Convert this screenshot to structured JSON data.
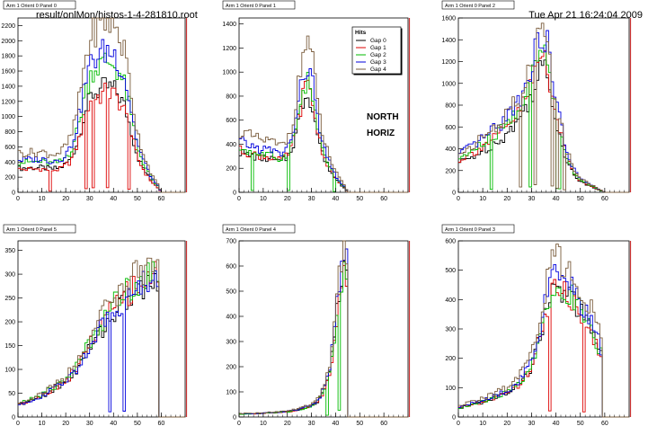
{
  "header": {
    "file_path": "result/onlMon/histos-1-4-281810.root",
    "timestamp": "Tue Apr 21 16:24:04 2009"
  },
  "legend": {
    "title": "Hits",
    "entries": [
      "Gap 0",
      "Gap 1",
      "Gap 2",
      "Gap 3",
      "Gap 4"
    ]
  },
  "annotations": [
    "NORTH",
    "HORIZ"
  ],
  "colors": {
    "Gap 0": "#000000",
    "Gap 1": "#dd0000",
    "Gap 2": "#00bb00",
    "Gap 3": "#0000dd",
    "Gap 4": "#7a5c3c",
    "panel_title_bg": "#ffffff",
    "frame": "#000000"
  },
  "chart_data": [
    {
      "type": "histogram-step",
      "title": "Arm 1 Orient 0 Panel 0",
      "xlim": [
        0,
        70
      ],
      "ylim": [
        0,
        2300
      ],
      "xticks": [
        0,
        10,
        20,
        30,
        40,
        50,
        60
      ],
      "yticks": [
        0,
        200,
        400,
        600,
        800,
        1000,
        1200,
        1400,
        1600,
        1800,
        2000,
        2200
      ],
      "bin_width": 1,
      "envelope": {
        "x": [
          0,
          10,
          14,
          18,
          22,
          25,
          28,
          31,
          34,
          37,
          40,
          42,
          45,
          47,
          50,
          53,
          56,
          59,
          60
        ],
        "y": [
          330,
          340,
          320,
          340,
          450,
          700,
          1100,
          1350,
          1400,
          1450,
          1420,
          1350,
          1150,
          900,
          500,
          300,
          150,
          50,
          0
        ]
      },
      "series": [
        {
          "name": "Gap 0",
          "scale": 0.95
        },
        {
          "name": "Gap 1",
          "scale": 0.9,
          "dips": [
            13,
            28,
            31,
            37,
            46
          ]
        },
        {
          "name": "Gap 2",
          "scale": 1.18
        },
        {
          "name": "Gap 3",
          "scale": 1.28
        },
        {
          "name": "Gap 4",
          "scale": 1.55
        }
      ]
    },
    {
      "type": "histogram-step",
      "title": "Arm 1 Orient 0 Panel 1",
      "xlim": [
        0,
        70
      ],
      "ylim": [
        0,
        1450
      ],
      "xticks": [
        0,
        10,
        20,
        30,
        40,
        50,
        60
      ],
      "yticks": [
        0,
        200,
        400,
        600,
        800,
        1000,
        1200,
        1400
      ],
      "bin_width": 1,
      "envelope": {
        "x": [
          0,
          3,
          8,
          13,
          17,
          20,
          23,
          26,
          28,
          30,
          32,
          35,
          38,
          41,
          44,
          45
        ],
        "y": [
          350,
          330,
          300,
          290,
          260,
          300,
          450,
          750,
          880,
          800,
          550,
          300,
          180,
          90,
          30,
          0
        ]
      },
      "series": [
        {
          "name": "Gap 0",
          "scale": 0.95
        },
        {
          "name": "Gap 1",
          "scale": 1.0
        },
        {
          "name": "Gap 2",
          "scale": 1.05,
          "dips": [
            5,
            20,
            39
          ]
        },
        {
          "name": "Gap 3",
          "scale": 1.2
        },
        {
          "name": "Gap 4",
          "scale": 1.45
        }
      ]
    },
    {
      "type": "histogram-step",
      "title": "Arm 1 Orient 0 Panel 2",
      "xlim": [
        0,
        70
      ],
      "ylim": [
        0,
        1600
      ],
      "xticks": [
        0,
        10,
        20,
        30,
        40,
        50,
        60
      ],
      "yticks": [
        0,
        200,
        400,
        600,
        800,
        1000,
        1200,
        1400,
        1600
      ],
      "bin_width": 1,
      "envelope": {
        "x": [
          0,
          5,
          10,
          15,
          20,
          25,
          28,
          31,
          34,
          36,
          38,
          41,
          44,
          47,
          50,
          53,
          57,
          60
        ],
        "y": [
          280,
          330,
          400,
          470,
          560,
          700,
          820,
          1000,
          1200,
          1150,
          900,
          600,
          330,
          180,
          100,
          70,
          30,
          0
        ]
      },
      "series": [
        {
          "name": "Gap 0",
          "scale": 0.95
        },
        {
          "name": "Gap 1",
          "scale": 1.05
        },
        {
          "name": "Gap 2",
          "scale": 1.1,
          "dips": [
            13,
            29,
            40,
            41
          ]
        },
        {
          "name": "Gap 3",
          "scale": 1.22
        },
        {
          "name": "Gap 4",
          "scale": 1.25,
          "dips": [
            25,
            31,
            38,
            40,
            43
          ]
        }
      ]
    },
    {
      "type": "histogram-step",
      "title": "Arm 1 Orient 0 Panel 5",
      "xlim": [
        0,
        70
      ],
      "ylim": [
        0,
        370
      ],
      "xticks": [
        0,
        10,
        20,
        30,
        40,
        50,
        60
      ],
      "yticks": [
        0,
        50,
        100,
        150,
        200,
        250,
        300,
        350
      ],
      "bin_width": 1,
      "end_bin": 59,
      "envelope": {
        "x": [
          0,
          5,
          10,
          15,
          20,
          25,
          30,
          35,
          40,
          45,
          50,
          55,
          59
        ],
        "y": [
          25,
          35,
          45,
          60,
          75,
          105,
          150,
          190,
          225,
          255,
          270,
          290,
          300
        ]
      },
      "series": [
        {
          "name": "Gap 0",
          "scale": 0.95
        },
        {
          "name": "Gap 1",
          "scale": 1.0
        },
        {
          "name": "Gap 2",
          "scale": 1.04
        },
        {
          "name": "Gap 3",
          "scale": 0.98,
          "dips": [
            38,
            44
          ]
        },
        {
          "name": "Gap 4",
          "scale": 1.1
        }
      ]
    },
    {
      "type": "histogram-step",
      "title": "Arm 1 Orient 0 Panel 4",
      "xlim": [
        0,
        70
      ],
      "ylim": [
        0,
        700
      ],
      "xticks": [
        0,
        10,
        20,
        30,
        40,
        50,
        60
      ],
      "yticks": [
        0,
        100,
        200,
        300,
        400,
        500,
        600,
        700
      ],
      "bin_width": 1,
      "end_bin": 45,
      "envelope": {
        "x": [
          0,
          10,
          20,
          25,
          30,
          33,
          36,
          38,
          40,
          42,
          44,
          45
        ],
        "y": [
          12,
          15,
          22,
          30,
          45,
          70,
          130,
          220,
          380,
          560,
          600,
          600
        ]
      },
      "series": [
        {
          "name": "Gap 0",
          "scale": 0.95
        },
        {
          "name": "Gap 1",
          "scale": 0.92
        },
        {
          "name": "Gap 2",
          "scale": 0.95,
          "dips": [
            36,
            41
          ]
        },
        {
          "name": "Gap 3",
          "scale": 1.02
        },
        {
          "name": "Gap 4",
          "scale": 1.1
        }
      ]
    },
    {
      "type": "histogram-step",
      "title": "Arm 1 Orient 0 Panel 3",
      "xlim": [
        0,
        70
      ],
      "ylim": [
        0,
        600
      ],
      "xticks": [
        0,
        10,
        20,
        30,
        40,
        50,
        60
      ],
      "yticks": [
        0,
        100,
        200,
        300,
        400,
        500,
        600
      ],
      "bin_width": 1,
      "end_bin": 59,
      "envelope": {
        "x": [
          0,
          5,
          10,
          15,
          20,
          25,
          30,
          34,
          37,
          40,
          43,
          46,
          50,
          54,
          57,
          59
        ],
        "y": [
          30,
          40,
          50,
          65,
          80,
          110,
          170,
          290,
          390,
          430,
          420,
          400,
          350,
          300,
          240,
          200
        ]
      },
      "series": [
        {
          "name": "Gap 0",
          "scale": 1.0
        },
        {
          "name": "Gap 1",
          "scale": 1.0,
          "dips": [
            37,
            51
          ]
        },
        {
          "name": "Gap 2",
          "scale": 1.03
        },
        {
          "name": "Gap 3",
          "scale": 1.1
        },
        {
          "name": "Gap 4",
          "scale": 1.25
        }
      ]
    }
  ]
}
